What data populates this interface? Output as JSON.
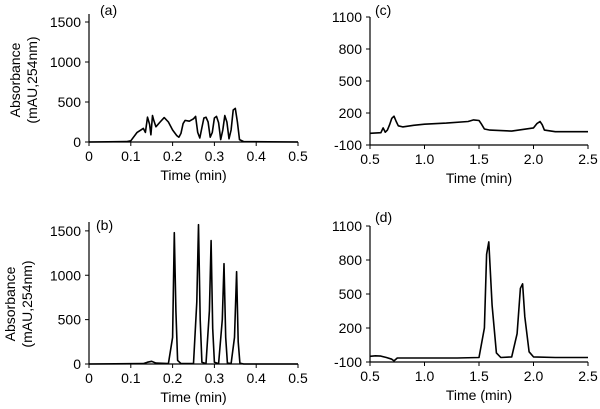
{
  "chart_data": [
    {
      "type": "line",
      "panel_label": "(a)",
      "xlabel": "Time (min)",
      "ylabel": "Absorbance",
      "ylabel_sub": "(mAU,254nm)",
      "xlim": [
        0,
        0.5
      ],
      "ylim": [
        0,
        1600
      ],
      "xticks": [
        0,
        0.1,
        0.2,
        0.3,
        0.4,
        0.5
      ],
      "xtick_labels": [
        "0",
        "0.1",
        "0.2",
        "0.3",
        "0.4",
        "0.5"
      ],
      "yticks": [
        0,
        500,
        1000,
        1500
      ],
      "ytick_labels": [
        "0",
        "500",
        "1000",
        "1500"
      ],
      "series": [
        {
          "x": [
            0.0,
            0.09,
            0.1,
            0.115,
            0.13,
            0.135,
            0.14,
            0.145,
            0.148,
            0.152,
            0.155,
            0.16,
            0.17,
            0.18,
            0.19,
            0.2,
            0.21,
            0.215,
            0.22,
            0.225,
            0.23,
            0.24,
            0.25,
            0.255,
            0.26,
            0.265,
            0.27,
            0.275,
            0.28,
            0.285,
            0.29,
            0.295,
            0.3,
            0.305,
            0.31,
            0.315,
            0.32,
            0.325,
            0.33,
            0.335,
            0.34,
            0.345,
            0.35,
            0.355,
            0.36,
            0.37,
            0.5
          ],
          "y": [
            0,
            5,
            15,
            120,
            170,
            120,
            310,
            220,
            90,
            330,
            270,
            190,
            250,
            305,
            250,
            150,
            80,
            60,
            110,
            230,
            270,
            260,
            290,
            320,
            120,
            50,
            180,
            300,
            310,
            250,
            60,
            120,
            300,
            320,
            240,
            30,
            150,
            330,
            250,
            40,
            150,
            400,
            420,
            250,
            30,
            5,
            0
          ]
        }
      ]
    },
    {
      "type": "line",
      "panel_label": "(b)",
      "xlabel": "Time (min)",
      "ylabel": "Absorbance",
      "ylabel_sub": "(mAU,254nm)",
      "xlim": [
        0,
        0.5
      ],
      "ylim": [
        0,
        1600
      ],
      "xticks": [
        0,
        0.1,
        0.2,
        0.3,
        0.4,
        0.5
      ],
      "xtick_labels": [
        "0",
        "0.1",
        "0.2",
        "0.3",
        "0.4",
        "0.5"
      ],
      "yticks": [
        0,
        500,
        1000,
        1500
      ],
      "ytick_labels": [
        "0",
        "500",
        "1000",
        "1500"
      ],
      "series": [
        {
          "x": [
            0.0,
            0.13,
            0.14,
            0.15,
            0.16,
            0.19,
            0.2,
            0.204,
            0.208,
            0.212,
            0.22,
            0.25,
            0.258,
            0.262,
            0.266,
            0.27,
            0.28,
            0.288,
            0.292,
            0.296,
            0.3,
            0.31,
            0.319,
            0.323,
            0.327,
            0.331,
            0.34,
            0.348,
            0.353,
            0.357,
            0.361,
            0.37,
            0.5
          ],
          "y": [
            0,
            5,
            20,
            30,
            10,
            5,
            300,
            1480,
            600,
            40,
            5,
            5,
            700,
            1570,
            500,
            20,
            5,
            600,
            1390,
            400,
            20,
            5,
            500,
            1130,
            300,
            10,
            5,
            300,
            1040,
            250,
            10,
            0,
            0
          ]
        }
      ]
    },
    {
      "type": "line",
      "panel_label": "(c)",
      "xlabel": "Time (min)",
      "ylabel": "",
      "xlim": [
        0.5,
        2.5
      ],
      "ylim": [
        -100,
        1100
      ],
      "xticks": [
        0.5,
        1.0,
        1.5,
        2.0,
        2.5
      ],
      "xtick_labels": [
        "0.5",
        "1.0",
        "1.5",
        "2.0",
        "2.5"
      ],
      "yticks": [
        -100,
        200,
        500,
        800,
        1100
      ],
      "ytick_labels": [
        "-100",
        "200",
        "500",
        "800",
        "1100"
      ],
      "series": [
        {
          "x": [
            0.5,
            0.6,
            0.62,
            0.64,
            0.66,
            0.68,
            0.7,
            0.72,
            0.74,
            0.76,
            0.8,
            0.9,
            1.0,
            1.2,
            1.4,
            1.45,
            1.5,
            1.52,
            1.55,
            1.6,
            1.8,
            2.0,
            2.03,
            2.06,
            2.08,
            2.1,
            2.2,
            2.5
          ],
          "y": [
            10,
            15,
            60,
            20,
            40,
            90,
            150,
            170,
            120,
            80,
            70,
            85,
            95,
            105,
            120,
            135,
            130,
            100,
            50,
            40,
            30,
            60,
            100,
            120,
            90,
            40,
            25,
            25
          ]
        }
      ]
    },
    {
      "type": "line",
      "panel_label": "(d)",
      "xlabel": "Time (min)",
      "ylabel": "",
      "xlim": [
        0.5,
        2.5
      ],
      "ylim": [
        -100,
        1100
      ],
      "xticks": [
        0.5,
        1.0,
        1.5,
        2.0,
        2.5
      ],
      "xtick_labels": [
        "0.5",
        "1.0",
        "1.5",
        "2.0",
        "2.5"
      ],
      "yticks": [
        -100,
        200,
        500,
        800,
        1100
      ],
      "ytick_labels": [
        "-100",
        "200",
        "500",
        "800",
        "1100"
      ],
      "series": [
        {
          "x": [
            0.5,
            0.55,
            0.6,
            0.65,
            0.7,
            0.72,
            0.75,
            0.8,
            1.0,
            1.3,
            1.5,
            1.55,
            1.57,
            1.59,
            1.62,
            1.66,
            1.7,
            1.8,
            1.85,
            1.88,
            1.9,
            1.92,
            1.96,
            2.0,
            2.2,
            2.5
          ],
          "y": [
            -50,
            -45,
            -48,
            -60,
            -75,
            -90,
            -65,
            -65,
            -65,
            -65,
            -60,
            200,
            850,
            960,
            400,
            -20,
            -60,
            -55,
            150,
            550,
            590,
            300,
            -10,
            -55,
            -60,
            -60
          ]
        }
      ]
    }
  ]
}
